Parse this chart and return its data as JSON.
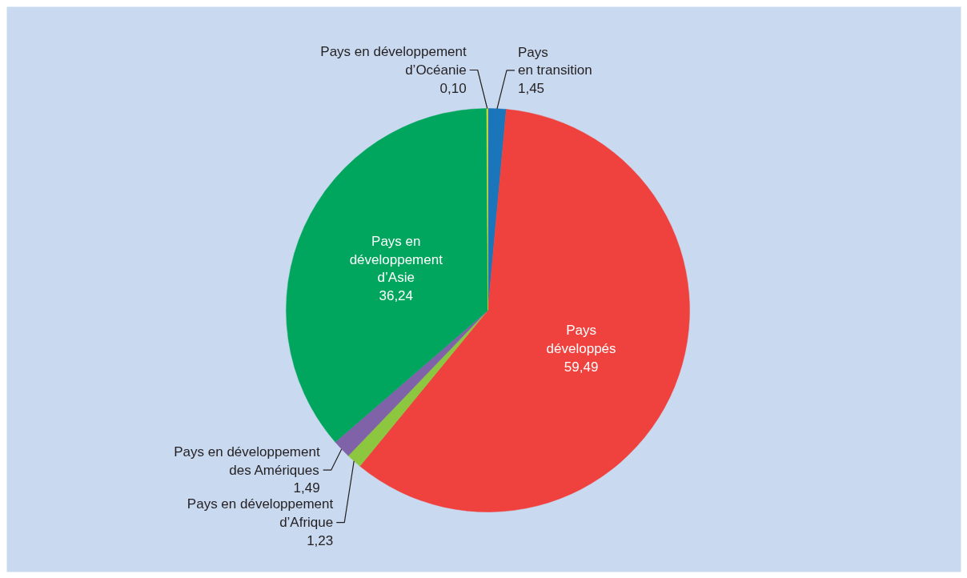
{
  "chart_data": {
    "type": "pie",
    "categories": [
      "Pays\nen transition",
      "Pays\ndéveloppés",
      "Pays en développement\nd’Afrique",
      "Pays en développement\ndes Amériques",
      "Pays en\ndéveloppement\nd’Asie",
      "Pays en développement\nd’Océanie"
    ],
    "values": [
      1.45,
      59.49,
      1.23,
      1.49,
      36.24,
      0.1
    ],
    "colors": [
      "#1a75bb",
      "#ef413d",
      "#8dc63f",
      "#8062a8",
      "#00a65d",
      "#d7df23"
    ],
    "value_labels": [
      "1,45",
      "59,49",
      "1,23",
      "1,49",
      "36,24",
      "0,10"
    ]
  }
}
